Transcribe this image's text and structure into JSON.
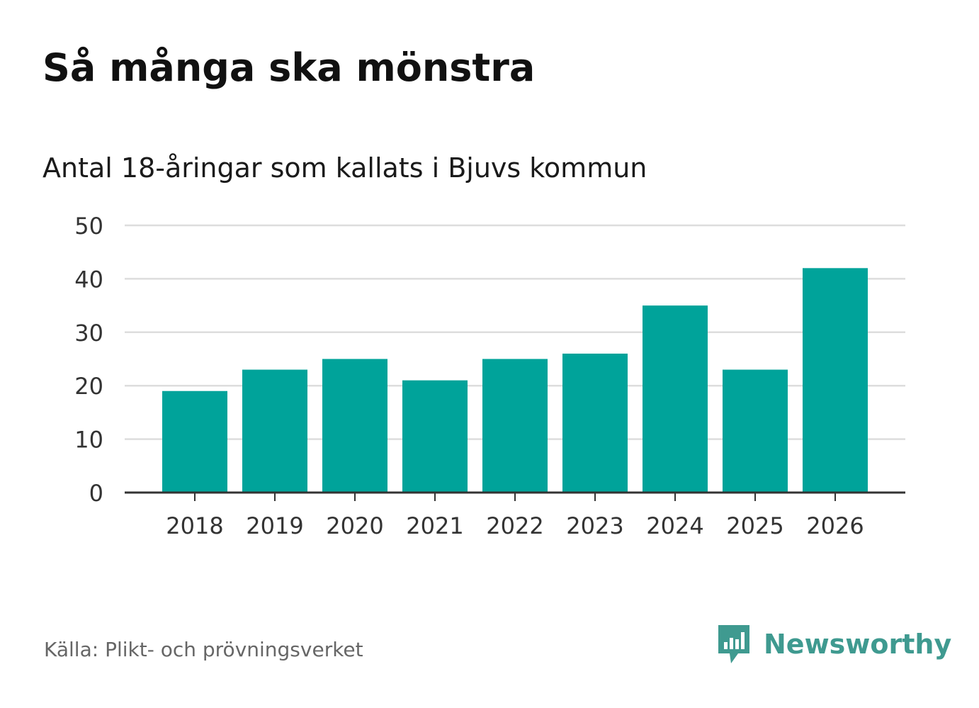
{
  "title": "Så många ska mönstra",
  "subtitle": "Antal 18-åringar som kallats i Bjuvs kommun",
  "source": "Källa: Plikt- och prövningsverket",
  "brand": {
    "name": "Newsworthy",
    "icon": "newsworthy-logo-icon",
    "color": "#3f9a90"
  },
  "colors": {
    "bar": "#00a39a",
    "grid": "#dddddd",
    "axis": "#333333"
  },
  "chart_data": {
    "type": "bar",
    "title": "Så många ska mönstra",
    "subtitle": "Antal 18-åringar som kallats i Bjuvs kommun",
    "xlabel": "",
    "ylabel": "",
    "categories": [
      "2018",
      "2019",
      "2020",
      "2021",
      "2022",
      "2023",
      "2024",
      "2025",
      "2026"
    ],
    "values": [
      19,
      23,
      25,
      21,
      25,
      26,
      35,
      23,
      42
    ],
    "ylim": [
      0,
      50
    ],
    "yticks": [
      0,
      10,
      20,
      30,
      40,
      50
    ],
    "grid": true,
    "legend": "none"
  }
}
